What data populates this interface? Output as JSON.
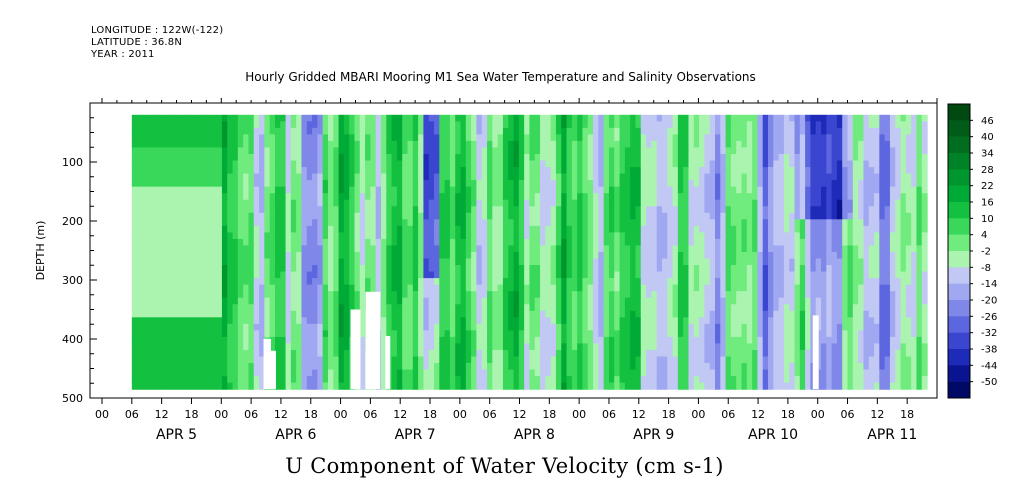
{
  "header": {
    "longitude": "LONGITUDE : 122W(-122)",
    "latitude": "LATITUDE : 36.8N",
    "year": "YEAR : 2011"
  },
  "chart_data": {
    "type": "heatmap",
    "title": "Hourly Gridded MBARI Mooring M1 Sea Water Temperature and Salinity Observations",
    "xlabel": "U Component of Water Velocity (cm s-1)",
    "ylabel": "DEPTH (m)",
    "ylim": [
      500,
      0
    ],
    "yticks": [
      100,
      200,
      300,
      400,
      500
    ],
    "xticks_hours": [
      "00",
      "06",
      "12",
      "18",
      "00",
      "06",
      "12",
      "18",
      "00",
      "06",
      "12",
      "18",
      "00",
      "06",
      "12",
      "18",
      "00",
      "06",
      "12",
      "18",
      "00",
      "06",
      "12",
      "18",
      "00",
      "06",
      "12",
      "18"
    ],
    "day_labels": [
      "APR 5",
      "APR 6",
      "APR 7",
      "APR 8",
      "APR 9",
      "APR 10",
      "APR 11"
    ],
    "colorbar": {
      "labels": [
        "46",
        "40",
        "34",
        "28",
        "22",
        "16",
        "10",
        "4",
        "-2",
        "-8",
        "-14",
        "-20",
        "-26",
        "-32",
        "-38",
        "-44",
        "-50"
      ],
      "colors": [
        "#004a12",
        "#005c18",
        "#006e1e",
        "#008226",
        "#00962e",
        "#00aa36",
        "#14c040",
        "#3ad85a",
        "#70ec7e",
        "#aaf4b0",
        "#c2c8f4",
        "#a0a8f2",
        "#7f88e8",
        "#5c66de",
        "#3a46d0",
        "#1e2ab8",
        "#0a1490",
        "#000a66"
      ]
    },
    "series_note": ""
  }
}
